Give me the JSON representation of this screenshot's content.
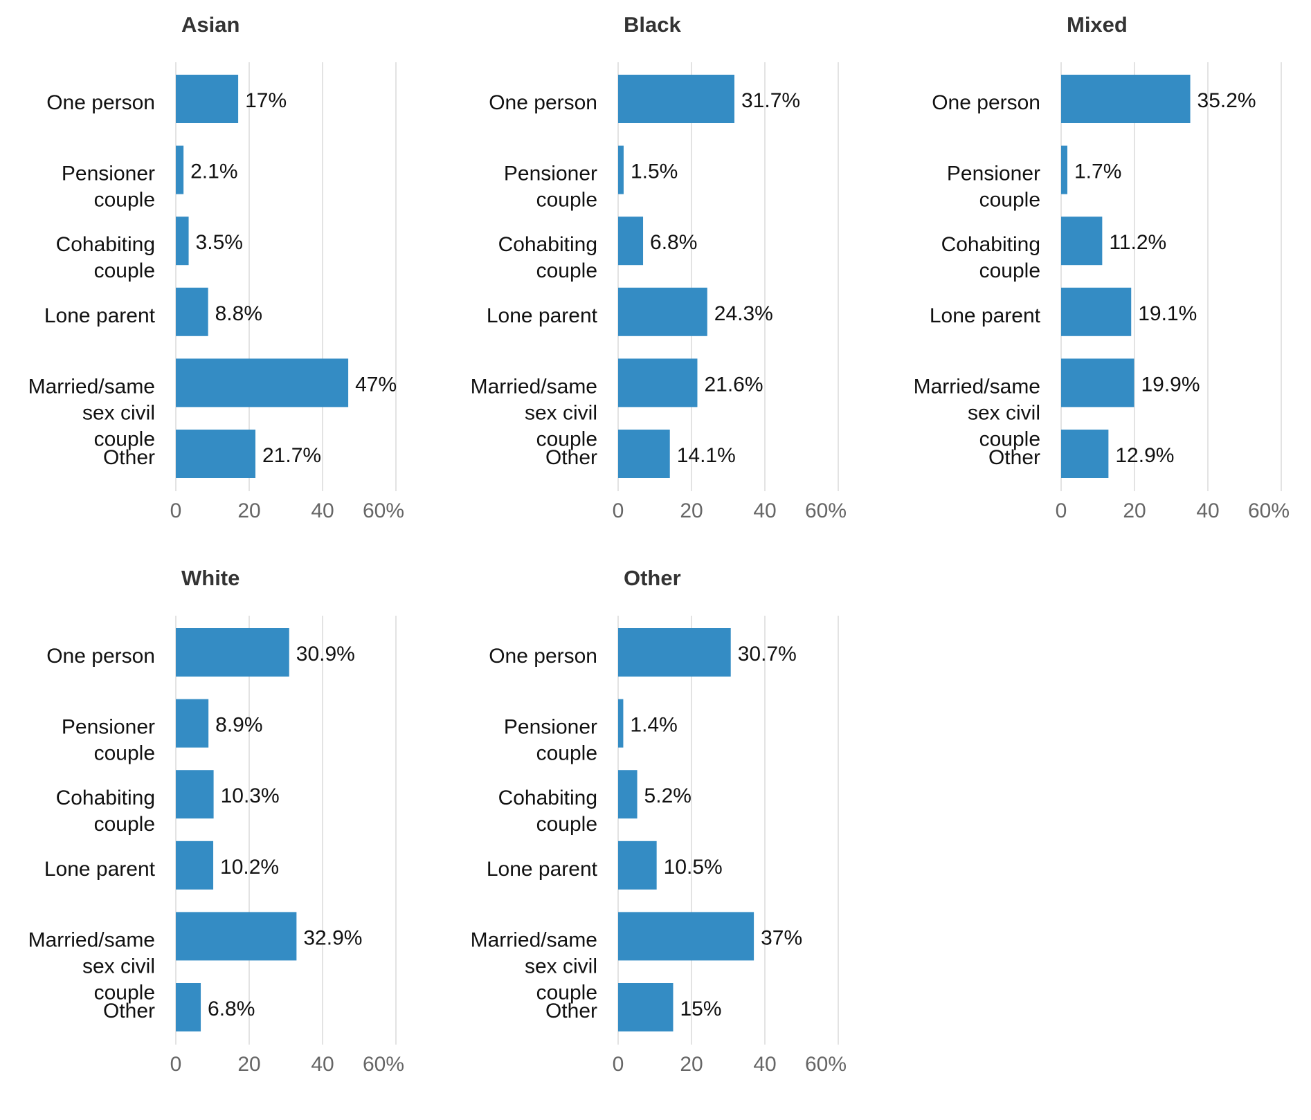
{
  "colors": {
    "bar": "#348cc4",
    "grid": "#e3e3e3",
    "text": "#111111",
    "tick": "#666666",
    "title": "#333333"
  },
  "chart_data": [
    {
      "type": "bar",
      "orientation": "horizontal",
      "title": "Asian",
      "categories": [
        [
          "One person"
        ],
        [
          "Pensioner",
          "couple"
        ],
        [
          "Cohabiting",
          "couple"
        ],
        [
          "Lone parent"
        ],
        [
          "Married/same",
          "sex civil",
          "couple"
        ],
        [
          "Other"
        ]
      ],
      "values": [
        17,
        2.1,
        3.5,
        8.8,
        47,
        21.7
      ],
      "value_labels": [
        "17%",
        "2.1%",
        "3.5%",
        "8.8%",
        "47%",
        "21.7%"
      ],
      "xlim": [
        0,
        60
      ],
      "xticks": [
        0,
        20,
        40,
        60
      ],
      "xtick_labels": [
        "0",
        "20",
        "40",
        "60%"
      ],
      "grid": true
    },
    {
      "type": "bar",
      "orientation": "horizontal",
      "title": "Black",
      "categories": [
        [
          "One person"
        ],
        [
          "Pensioner",
          "couple"
        ],
        [
          "Cohabiting",
          "couple"
        ],
        [
          "Lone parent"
        ],
        [
          "Married/same",
          "sex civil",
          "couple"
        ],
        [
          "Other"
        ]
      ],
      "values": [
        31.7,
        1.5,
        6.8,
        24.3,
        21.6,
        14.1
      ],
      "value_labels": [
        "31.7%",
        "1.5%",
        "6.8%",
        "24.3%",
        "21.6%",
        "14.1%"
      ],
      "xlim": [
        0,
        60
      ],
      "xticks": [
        0,
        20,
        40,
        60
      ],
      "xtick_labels": [
        "0",
        "20",
        "40",
        "60%"
      ],
      "grid": true
    },
    {
      "type": "bar",
      "orientation": "horizontal",
      "title": "Mixed",
      "categories": [
        [
          "One person"
        ],
        [
          "Pensioner",
          "couple"
        ],
        [
          "Cohabiting",
          "couple"
        ],
        [
          "Lone parent"
        ],
        [
          "Married/same",
          "sex civil",
          "couple"
        ],
        [
          "Other"
        ]
      ],
      "values": [
        35.2,
        1.7,
        11.2,
        19.1,
        19.9,
        12.9
      ],
      "value_labels": [
        "35.2%",
        "1.7%",
        "11.2%",
        "19.1%",
        "19.9%",
        "12.9%"
      ],
      "xlim": [
        0,
        60
      ],
      "xticks": [
        0,
        20,
        40,
        60
      ],
      "xtick_labels": [
        "0",
        "20",
        "40",
        "60%"
      ],
      "grid": true
    },
    {
      "type": "bar",
      "orientation": "horizontal",
      "title": "White",
      "categories": [
        [
          "One person"
        ],
        [
          "Pensioner",
          "couple"
        ],
        [
          "Cohabiting",
          "couple"
        ],
        [
          "Lone parent"
        ],
        [
          "Married/same",
          "sex civil",
          "couple"
        ],
        [
          "Other"
        ]
      ],
      "values": [
        30.9,
        8.9,
        10.3,
        10.2,
        32.9,
        6.8
      ],
      "value_labels": [
        "30.9%",
        "8.9%",
        "10.3%",
        "10.2%",
        "32.9%",
        "6.8%"
      ],
      "xlim": [
        0,
        60
      ],
      "xticks": [
        0,
        20,
        40,
        60
      ],
      "xtick_labels": [
        "0",
        "20",
        "40",
        "60%"
      ],
      "grid": true
    },
    {
      "type": "bar",
      "orientation": "horizontal",
      "title": "Other",
      "categories": [
        [
          "One person"
        ],
        [
          "Pensioner",
          "couple"
        ],
        [
          "Cohabiting",
          "couple"
        ],
        [
          "Lone parent"
        ],
        [
          "Married/same",
          "sex civil",
          "couple"
        ],
        [
          "Other"
        ]
      ],
      "values": [
        30.7,
        1.4,
        5.2,
        10.5,
        37,
        15
      ],
      "value_labels": [
        "30.7%",
        "1.4%",
        "5.2%",
        "10.5%",
        "37%",
        "15%"
      ],
      "xlim": [
        0,
        60
      ],
      "xticks": [
        0,
        20,
        40,
        60
      ],
      "xtick_labels": [
        "0",
        "20",
        "40",
        "60%"
      ],
      "grid": true
    }
  ]
}
